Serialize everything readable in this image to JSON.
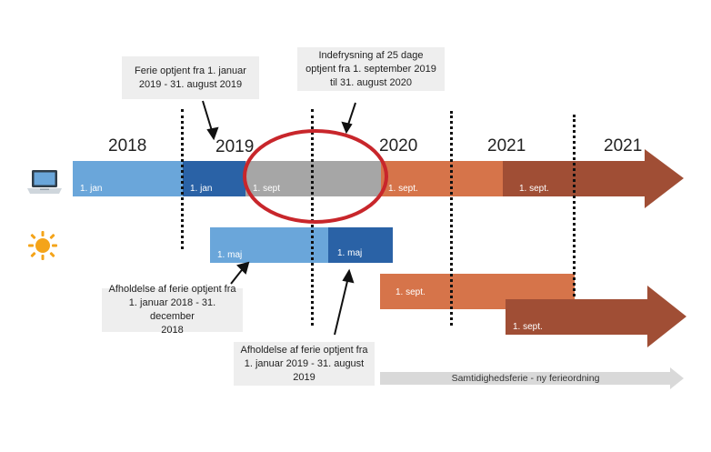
{
  "callouts": {
    "earned_2018_2019": "Ferie optjent fra 1. januar\n2019 - 31. august 2019",
    "freeze": "Indefrysning af 25 dage\noptjent fra 1. september 2019\ntil 31. august 2020",
    "usage_2018": "Afholdelse af ferie optjent fra\n1. januar 2018 - 31. december\n2018",
    "usage_2019": "Afholdelse af ferie optjent fra\n1. januar 2019 - 31. august\n2019"
  },
  "years": [
    "2018",
    "2019",
    "2020",
    "2021",
    "2021"
  ],
  "main_bar": {
    "segments": [
      {
        "label": "1. jan",
        "color": "#6aa6da"
      },
      {
        "label": "1. jan",
        "color": "#2a62a6"
      },
      {
        "label": "1. sept",
        "color": "#a6a6a6"
      },
      {
        "label": "1. sept.",
        "color": "#d6744a"
      },
      {
        "label": "1. sept.",
        "color": "#a04e35"
      }
    ]
  },
  "usage_bar": {
    "segments": [
      {
        "label": "1. maj",
        "color": "#6aa6da"
      },
      {
        "label": "1. maj",
        "color": "#2a62a6"
      }
    ]
  },
  "new_bars": {
    "orange_label": "1. sept.",
    "brown_label": "1. sept."
  },
  "concurrent_arrow_label": "Samtidighedsferie - ny ferieordning",
  "icons": {
    "laptop": "laptop-icon",
    "sun": "sun-icon"
  },
  "colors": {
    "freeze_highlight": "#c8262b",
    "concurrent_arrow": "#d9d9d9"
  }
}
